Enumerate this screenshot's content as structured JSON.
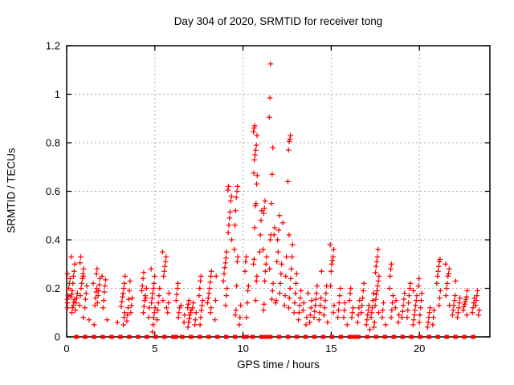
{
  "page": {
    "background": "#ffffff",
    "text_color": "#000000"
  },
  "chart_data": {
    "type": "scatter",
    "title": "Day 304 of 2020, SRMTID for receiver tong",
    "xlabel": "GPS time / hours",
    "ylabel": "SRMTID / TECUs",
    "xlim": [
      0,
      24
    ],
    "ylim": [
      0,
      1.2
    ],
    "xticks": {
      "values": [
        0,
        5,
        10,
        15,
        20
      ],
      "labels": [
        "0",
        "5",
        "10",
        "15",
        "20"
      ]
    },
    "yticks": {
      "values": [
        0,
        0.2,
        0.4,
        0.6,
        0.8,
        1,
        1.2
      ],
      "labels": [
        "0",
        "0.2",
        "0.4",
        "0.6",
        "0.8",
        "1",
        "1.2"
      ]
    },
    "grid": true,
    "grid_color": "#b0b0b0",
    "border_color": "#000000",
    "legend": "none",
    "marker": {
      "symbol": "plus",
      "color": "#ff0000"
    },
    "series": [
      {
        "name": "SRMTID",
        "clusters": [
          {
            "x": 0.08,
            "values": [
              0.12,
              0.14,
              0.155,
              0.17,
              0.2,
              0.22,
              0.24,
              0.26
            ]
          },
          {
            "x": 0.35,
            "values": [
              0.1,
              0.12,
              0.13,
              0.145,
              0.155,
              0.165,
              0.175,
              0.19,
              0.22,
              0.25,
              0.27,
              0.3,
              0.33
            ]
          },
          {
            "x": 0.55,
            "values": [
              0.11,
              0.14,
              0.16,
              0.18
            ]
          },
          {
            "x": 0.85,
            "values": [
              0.08,
              0.13,
              0.17,
              0.2,
              0.22,
              0.24,
              0.26,
              0.28,
              0.305,
              0.33
            ]
          },
          {
            "x": 1.05,
            "values": [
              0.12,
              0.155,
              0.18,
              0.21,
              0.25
            ]
          },
          {
            "x": 1.35,
            "values": [
              0.07
            ]
          },
          {
            "x": 1.6,
            "values": [
              0.05,
              0.13,
              0.16,
              0.185,
              0.2,
              0.22
            ]
          },
          {
            "x": 1.8,
            "values": [
              0.14,
              0.17,
              0.19,
              0.215,
              0.24,
              0.26,
              0.28
            ]
          },
          {
            "x": 2.1,
            "values": [
              0.12,
              0.15,
              0.185,
              0.21,
              0.235,
              0.25
            ]
          },
          {
            "x": 2.35,
            "values": [
              0.07
            ]
          },
          {
            "x": 2.9,
            "values": [
              0.06
            ]
          },
          {
            "x": 3.2,
            "values": [
              0.05,
              0.08,
              0.1,
              0.125,
              0.145,
              0.165,
              0.18,
              0.2,
              0.22,
              0.25
            ]
          },
          {
            "x": 3.5,
            "values": [
              0.065,
              0.09,
              0.12,
              0.155,
              0.19,
              0.23
            ]
          },
          {
            "x": 3.75,
            "values": [
              0.1,
              0.13,
              0.16
            ]
          },
          {
            "x": 4.35,
            "values": [
              0.1,
              0.125,
              0.15,
              0.17,
              0.19,
              0.21,
              0.24,
              0.265
            ]
          },
          {
            "x": 4.6,
            "values": [
              0.08,
              0.12,
              0.16,
              0.2
            ]
          },
          {
            "x": 4.9,
            "values": [
              0.02,
              0.05,
              0.08,
              0.1,
              0.12,
              0.14,
              0.16,
              0.18,
              0.2,
              0.22,
              0.25,
              0.28
            ]
          },
          {
            "x": 5.2,
            "values": [
              0.07,
              0.11,
              0.14,
              0.17,
              0.2
            ]
          },
          {
            "x": 5.55,
            "values": [
              0.12,
              0.15,
              0.25,
              0.27,
              0.29,
              0.31,
              0.33,
              0.35
            ]
          },
          {
            "x": 5.8,
            "values": [
              0.1,
              0.14,
              0.18
            ]
          },
          {
            "x": 6.3,
            "values": [
              0.08,
              0.1,
              0.12,
              0.15,
              0.175,
              0.2,
              0.22
            ]
          },
          {
            "x": 6.6,
            "values": [
              0.06,
              0.09,
              0.13
            ]
          },
          {
            "x": 6.95,
            "values": [
              0.04,
              0.06,
              0.075,
              0.09,
              0.1,
              0.11,
              0.12,
              0.135,
              0.15
            ]
          },
          {
            "x": 7.25,
            "values": [
              0.05,
              0.07,
              0.1,
              0.12,
              0.14
            ]
          },
          {
            "x": 7.6,
            "values": [
              0.05,
              0.08,
              0.11,
              0.13,
              0.15,
              0.17,
              0.2,
              0.23,
              0.25
            ]
          },
          {
            "x": 8.1,
            "values": [
              0.1,
              0.12,
              0.14,
              0.16,
              0.18,
              0.2,
              0.225,
              0.25,
              0.27
            ]
          },
          {
            "x": 8.5,
            "values": [
              0.07,
              0.15,
              0.25
            ]
          },
          {
            "x": 9.0,
            "values": [
              0.13,
              0.17,
              0.2,
              0.23,
              0.26,
              0.285,
              0.305,
              0.325,
              0.35
            ]
          },
          {
            "x": 9.25,
            "values": [
              0.4,
              0.43,
              0.46,
              0.49,
              0.515,
              0.56,
              0.58,
              0.605,
              0.62
            ]
          },
          {
            "x": 9.6,
            "values": [
              0.09,
              0.11,
              0.21,
              0.31,
              0.33,
              0.36,
              0.46,
              0.52,
              0.575,
              0.6,
              0.62
            ]
          },
          {
            "x": 9.9,
            "values": [
              0.05,
              0.08,
              0.13
            ]
          },
          {
            "x": 10.2,
            "values": [
              0.08,
              0.14,
              0.19,
              0.21,
              0.27,
              0.31,
              0.33
            ]
          },
          {
            "x": 10.7,
            "values": [
              0.15,
              0.23,
              0.25,
              0.3,
              0.32,
              0.45,
              0.54,
              0.55,
              0.63,
              0.665,
              0.675,
              0.73,
              0.75,
              0.77,
              0.79,
              0.83,
              0.845,
              0.86,
              0.87
            ]
          },
          {
            "x": 10.95,
            "values": [
              0.35,
              0.42,
              0.48,
              0.52
            ]
          },
          {
            "x": 11.25,
            "values": [
              0.11,
              0.135,
              0.23,
              0.27,
              0.3,
              0.33,
              0.36,
              0.51,
              0.53,
              0.56
            ]
          },
          {
            "x": 11.6,
            "values": [
              0.155,
              0.19,
              0.22,
              0.28,
              0.4,
              0.42,
              0.55,
              0.67,
              0.78,
              0.905,
              0.985,
              1.125
            ]
          },
          {
            "x": 11.85,
            "values": [
              0.14,
              0.15,
              0.31,
              0.4,
              0.42,
              0.45
            ]
          },
          {
            "x": 12.1,
            "values": [
              0.18,
              0.22,
              0.26,
              0.3,
              0.35,
              0.44,
              0.5
            ]
          },
          {
            "x": 12.35,
            "values": [
              0.13,
              0.17,
              0.25,
              0.33,
              0.47
            ]
          },
          {
            "x": 12.6,
            "values": [
              0.64,
              0.77,
              0.805,
              0.815,
              0.83
            ]
          },
          {
            "x": 12.7,
            "values": [
              0.12,
              0.16,
              0.2,
              0.24,
              0.28,
              0.33,
              0.38,
              0.42
            ]
          },
          {
            "x": 12.95,
            "values": [
              0.1,
              0.14,
              0.18,
              0.22,
              0.26
            ]
          },
          {
            "x": 13.25,
            "values": [
              0.07,
              0.1,
              0.13,
              0.16,
              0.19
            ]
          },
          {
            "x": 13.5,
            "values": [
              0.05,
              0.08,
              0.11,
              0.14
            ]
          },
          {
            "x": 13.8,
            "values": [
              0.06,
              0.09,
              0.12,
              0.15,
              0.18
            ]
          },
          {
            "x": 14.1,
            "values": [
              0.08,
              0.105,
              0.13,
              0.155,
              0.18,
              0.21
            ]
          },
          {
            "x": 14.4,
            "values": [
              0.07,
              0.1,
              0.13,
              0.16,
              0.27
            ]
          },
          {
            "x": 14.7,
            "values": [
              0.06,
              0.09,
              0.12,
              0.15,
              0.18,
              0.21
            ]
          },
          {
            "x": 15.05,
            "values": [
              0.1,
              0.13,
              0.21,
              0.27,
              0.3,
              0.315,
              0.33,
              0.36,
              0.38
            ]
          },
          {
            "x": 15.45,
            "values": [
              0.08,
              0.11,
              0.14,
              0.17,
              0.2
            ]
          },
          {
            "x": 15.8,
            "values": [
              0.05,
              0.08,
              0.11,
              0.14
            ]
          },
          {
            "x": 16.15,
            "values": [
              0.08,
              0.1,
              0.12,
              0.15,
              0.18,
              0.2
            ]
          },
          {
            "x": 16.5,
            "values": [
              0.06,
              0.09,
              0.12,
              0.15
            ]
          },
          {
            "x": 16.8,
            "values": [
              0.1,
              0.13,
              0.16,
              0.19,
              0.22
            ]
          },
          {
            "x": 17.1,
            "values": [
              0.03,
              0.05,
              0.07,
              0.09,
              0.11,
              0.13
            ]
          },
          {
            "x": 17.35,
            "values": [
              0.04,
              0.06,
              0.08,
              0.1,
              0.12,
              0.15,
              0.18
            ]
          },
          {
            "x": 17.6,
            "values": [
              0.1,
              0.13,
              0.155,
              0.175,
              0.19,
              0.21,
              0.23,
              0.25,
              0.265,
              0.29,
              0.31,
              0.33,
              0.36
            ]
          },
          {
            "x": 18.0,
            "values": [
              0.05,
              0.08,
              0.11,
              0.14
            ]
          },
          {
            "x": 18.4,
            "values": [
              0.08,
              0.11,
              0.14,
              0.17,
              0.2,
              0.25,
              0.28,
              0.3
            ]
          },
          {
            "x": 18.75,
            "values": [
              0.06,
              0.09,
              0.12,
              0.15
            ]
          },
          {
            "x": 19.05,
            "values": [
              0.08,
              0.105,
              0.13,
              0.155,
              0.18
            ]
          },
          {
            "x": 19.4,
            "values": [
              0.08,
              0.11,
              0.14,
              0.17,
              0.2,
              0.22
            ]
          },
          {
            "x": 19.75,
            "values": [
              0.05,
              0.07,
              0.09,
              0.11,
              0.13,
              0.15,
              0.17,
              0.19
            ]
          },
          {
            "x": 20.05,
            "values": [
              0.06,
              0.09,
              0.12,
              0.15,
              0.18,
              0.21,
              0.24
            ]
          },
          {
            "x": 20.5,
            "values": [
              0.04,
              0.06,
              0.08,
              0.1,
              0.12
            ]
          },
          {
            "x": 20.85,
            "values": [
              0.05,
              0.08,
              0.11
            ]
          },
          {
            "x": 21.1,
            "values": [
              0.13,
              0.16,
              0.19,
              0.22,
              0.25,
              0.27,
              0.29,
              0.31,
              0.32
            ]
          },
          {
            "x": 21.6,
            "values": [
              0.13,
              0.17,
              0.2,
              0.22,
              0.25,
              0.26,
              0.28,
              0.3
            ]
          },
          {
            "x": 21.95,
            "values": [
              0.09,
              0.11,
              0.13,
              0.15,
              0.17,
              0.23
            ]
          },
          {
            "x": 22.25,
            "values": [
              0.08,
              0.1,
              0.12,
              0.14,
              0.16
            ]
          },
          {
            "x": 22.6,
            "values": [
              0.09,
              0.11,
              0.125,
              0.135,
              0.145,
              0.155,
              0.165,
              0.19
            ]
          },
          {
            "x": 23.1,
            "values": [
              0.1,
              0.12,
              0.14,
              0.16
            ]
          },
          {
            "x": 23.3,
            "values": [
              0.09,
              0.11,
              0.13,
              0.15,
              0.17,
              0.19
            ]
          }
        ]
      }
    ],
    "zero_line_markers": {
      "symbol": "square",
      "color": "#ff0000",
      "value": 0,
      "hours": [
        0.55,
        1.05,
        1.55,
        2.05,
        2.55,
        3.05,
        3.55,
        4.05,
        4.55,
        5.05,
        5.55,
        6.05,
        6.2,
        6.55,
        7.05,
        7.55,
        8.05,
        8.55,
        9.05,
        9.55,
        10.05,
        10.2,
        10.55,
        11.05,
        11.3,
        11.55,
        12.05,
        12.55,
        13.05,
        13.55,
        14.05,
        14.55,
        15.05,
        15.55,
        16.05,
        16.3,
        16.55,
        17.05,
        17.55,
        18.05,
        18.55,
        19.05,
        19.55,
        20.05,
        20.55,
        21.05,
        21.55,
        22.05,
        22.55,
        23.05
      ]
    }
  }
}
